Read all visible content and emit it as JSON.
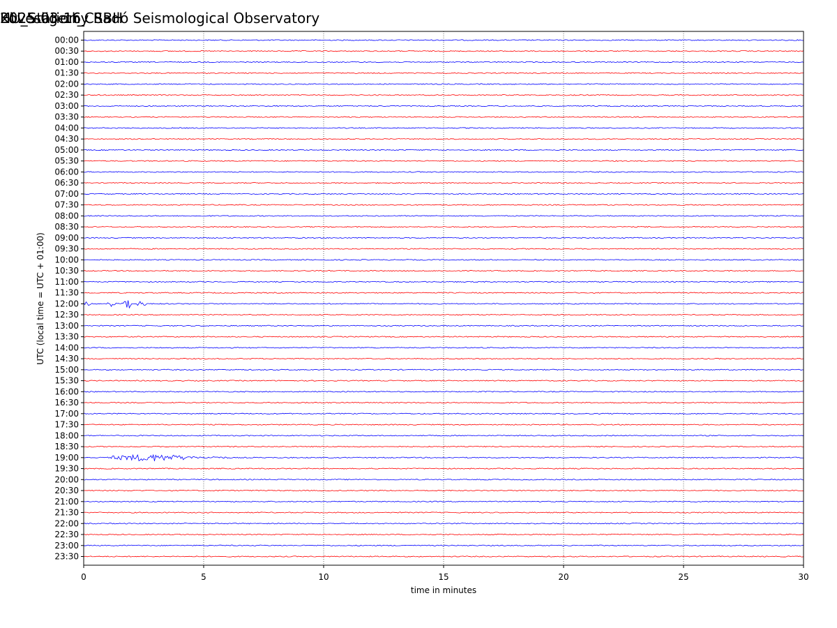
{
  "header": {
    "station": "HU_Station_CSBH",
    "observatory": "Kövesligethy Radó Seismological Observatory",
    "date": "2025-03-16"
  },
  "chart_data": {
    "type": "line",
    "title": "Kövesligethy Radó Seismological Observatory",
    "xlabel": "time in minutes",
    "ylabel": "UTC (local time = UTC + 01:00)",
    "xlim": [
      0,
      30
    ],
    "xticks": [
      0,
      5,
      10,
      15,
      20,
      25,
      30
    ],
    "grid_x": [
      5,
      10,
      15,
      20,
      25
    ],
    "rows": [
      "00:00",
      "00:30",
      "01:00",
      "01:30",
      "02:00",
      "02:30",
      "03:00",
      "03:30",
      "04:00",
      "04:30",
      "05:00",
      "05:30",
      "06:00",
      "06:30",
      "07:00",
      "07:30",
      "08:00",
      "08:30",
      "09:00",
      "09:30",
      "10:00",
      "10:30",
      "11:00",
      "11:30",
      "12:00",
      "12:30",
      "13:00",
      "13:30",
      "14:00",
      "14:30",
      "15:00",
      "15:30",
      "16:00",
      "16:30",
      "17:00",
      "17:30",
      "18:00",
      "18:30",
      "19:00",
      "19:30",
      "20:00",
      "20:30",
      "21:00",
      "21:30",
      "22:00",
      "22:30",
      "23:00",
      "23:30"
    ],
    "colors": [
      "#0000ff",
      "#ff0000"
    ],
    "events": [
      {
        "row": "12:00",
        "bursts": [
          {
            "start": 0.0,
            "end": 0.3,
            "amp": 0.25
          },
          {
            "start": 0.9,
            "end": 1.4,
            "amp": 0.3
          },
          {
            "start": 1.6,
            "end": 1.95,
            "amp": 0.7
          },
          {
            "start": 2.2,
            "end": 2.6,
            "amp": 0.3
          }
        ]
      },
      {
        "row": "19:00",
        "bursts": [
          {
            "start": 1.0,
            "end": 4.6,
            "amp": 0.35
          },
          {
            "start": 4.6,
            "end": 6.2,
            "amp": 0.12
          }
        ]
      }
    ]
  }
}
